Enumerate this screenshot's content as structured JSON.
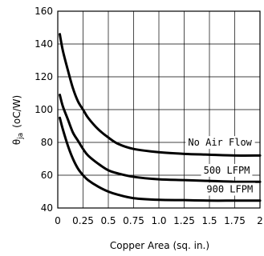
{
  "chart_data": {
    "type": "line",
    "title": "",
    "xlabel": "Copper Area (sq. in.)",
    "ylabel_main": "θ",
    "ylabel_sub": "ja",
    "ylabel_unit": "(oC/W)",
    "xlim": [
      0,
      2
    ],
    "ylim": [
      40,
      160
    ],
    "grid": true,
    "x_ticks": [
      0,
      0.25,
      0.5,
      0.75,
      1.0,
      1.25,
      1.5,
      1.75,
      2
    ],
    "x_tick_labels": [
      "0",
      "0.25",
      "0.5",
      "0.75",
      "1.0",
      "1.25",
      "1.5",
      "1.75",
      "2"
    ],
    "y_ticks": [
      40,
      60,
      80,
      100,
      120,
      140,
      160
    ],
    "y_tick_labels": [
      "40",
      "60",
      "80",
      "100",
      "120",
      "140",
      "160"
    ],
    "series": [
      {
        "name": "No Air Flow",
        "x": [
          0.02,
          0.05,
          0.1,
          0.15,
          0.2,
          0.25,
          0.3,
          0.4,
          0.5,
          0.6,
          0.75,
          1.0,
          1.25,
          1.5,
          1.75,
          2.0
        ],
        "y": [
          146,
          136,
          124,
          113,
          105,
          100,
          95,
          88,
          83,
          79,
          76,
          74,
          73,
          72.5,
          72,
          72
        ]
      },
      {
        "name": "500 LFPM",
        "x": [
          0.02,
          0.05,
          0.1,
          0.15,
          0.2,
          0.25,
          0.3,
          0.4,
          0.5,
          0.6,
          0.75,
          1.0,
          1.25,
          1.5,
          1.75,
          2.0
        ],
        "y": [
          109,
          102,
          94,
          86,
          81,
          76,
          72,
          67,
          63,
          61,
          59,
          57.5,
          57,
          56.5,
          56,
          56
        ]
      },
      {
        "name": "900 LFPM",
        "x": [
          0.02,
          0.05,
          0.1,
          0.15,
          0.2,
          0.25,
          0.3,
          0.4,
          0.5,
          0.6,
          0.75,
          1.0,
          1.25,
          1.5,
          1.75,
          2.0
        ],
        "y": [
          95,
          88,
          78,
          70,
          64,
          60,
          57,
          53,
          50,
          48,
          46,
          45,
          44.8,
          44.5,
          44.5,
          44.5
        ]
      }
    ],
    "series_label_positions": [
      {
        "name": "No Air Flow",
        "x_data": 1.92,
        "y_data": 78,
        "anchor": "end"
      },
      {
        "name": "500 LFPM",
        "x_data": 1.9,
        "y_data": 61,
        "anchor": "end"
      },
      {
        "name": "900 LFPM",
        "x_data": 1.93,
        "y_data": 49.5,
        "anchor": "end"
      }
    ]
  }
}
